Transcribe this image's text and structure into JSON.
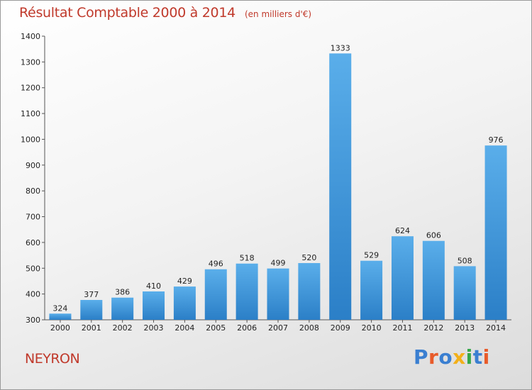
{
  "title": "Résultat Comptable 2000 à 2014",
  "unit_note": "(en milliers d'€)",
  "commune": "NEYRON",
  "logo": {
    "text": "Proxiti",
    "colors": [
      "#3a7fd1",
      "#e85b2a",
      "#3a7fd1",
      "#f2b019",
      "#35a84a",
      "#3a7fd1",
      "#e85b2a"
    ]
  },
  "colors": {
    "bar_top": "#5aaeea",
    "bar_bottom": "#2b7fc7",
    "title": "#c0392b"
  },
  "chart_data": {
    "type": "bar",
    "categories": [
      "2000",
      "2001",
      "2002",
      "2003",
      "2004",
      "2005",
      "2006",
      "2007",
      "2008",
      "2009",
      "2010",
      "2011",
      "2012",
      "2013",
      "2014"
    ],
    "values": [
      324,
      377,
      386,
      410,
      429,
      496,
      518,
      499,
      520,
      1333,
      529,
      624,
      606,
      508,
      976
    ],
    "ylim": [
      300,
      1400
    ],
    "yticks": [
      300,
      400,
      500,
      600,
      700,
      800,
      900,
      1000,
      1100,
      1200,
      1300,
      1400
    ],
    "xlabel": "",
    "ylabel": "",
    "grid": false
  }
}
